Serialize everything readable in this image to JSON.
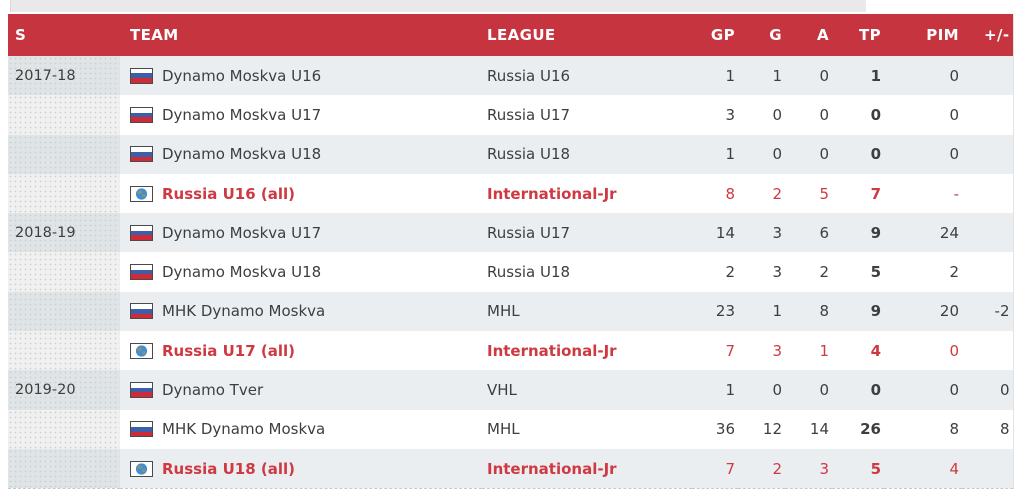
{
  "table": {
    "columns": [
      {
        "key": "season",
        "label": "S"
      },
      {
        "key": "team",
        "label": "TEAM"
      },
      {
        "key": "league",
        "label": "LEAGUE"
      },
      {
        "key": "gp",
        "label": "GP"
      },
      {
        "key": "g",
        "label": "G"
      },
      {
        "key": "a",
        "label": "A"
      },
      {
        "key": "tp",
        "label": "TP"
      },
      {
        "key": "pim",
        "label": "PIM"
      },
      {
        "key": "plusminus",
        "label": "+/-"
      }
    ],
    "rows": [
      {
        "season": "2017-18",
        "icon": "russia-flag",
        "team": "Dynamo Moskva U16",
        "league": "Russia U16",
        "gp": "1",
        "g": "1",
        "a": "0",
        "tp": "1",
        "pim": "0",
        "plusminus": "",
        "international": false
      },
      {
        "season": "",
        "icon": "russia-flag",
        "team": "Dynamo Moskva U17",
        "league": "Russia U17",
        "gp": "3",
        "g": "0",
        "a": "0",
        "tp": "0",
        "pim": "0",
        "plusminus": "",
        "international": false
      },
      {
        "season": "",
        "icon": "russia-flag",
        "team": "Dynamo Moskva U18",
        "league": "Russia U18",
        "gp": "1",
        "g": "0",
        "a": "0",
        "tp": "0",
        "pim": "0",
        "plusminus": "",
        "international": false
      },
      {
        "season": "",
        "icon": "globe",
        "team": "Russia U16 (all)",
        "league": "International-Jr",
        "gp": "8",
        "g": "2",
        "a": "5",
        "tp": "7",
        "pim": "-",
        "plusminus": "",
        "international": true
      },
      {
        "season": "2018-19",
        "icon": "russia-flag",
        "team": "Dynamo Moskva U17",
        "league": "Russia U17",
        "gp": "14",
        "g": "3",
        "a": "6",
        "tp": "9",
        "pim": "24",
        "plusminus": "",
        "international": false
      },
      {
        "season": "",
        "icon": "russia-flag",
        "team": "Dynamo Moskva U18",
        "league": "Russia U18",
        "gp": "2",
        "g": "3",
        "a": "2",
        "tp": "5",
        "pim": "2",
        "plusminus": "",
        "international": false
      },
      {
        "season": "",
        "icon": "russia-flag",
        "team": "MHK Dynamo Moskva",
        "league": "MHL",
        "gp": "23",
        "g": "1",
        "a": "8",
        "tp": "9",
        "pim": "20",
        "plusminus": "-2",
        "international": false
      },
      {
        "season": "",
        "icon": "globe",
        "team": "Russia U17 (all)",
        "league": "International-Jr",
        "gp": "7",
        "g": "3",
        "a": "1",
        "tp": "4",
        "pim": "0",
        "plusminus": "",
        "international": true
      },
      {
        "season": "2019-20",
        "icon": "russia-flag",
        "team": "Dynamo Tver",
        "league": "VHL",
        "gp": "1",
        "g": "0",
        "a": "0",
        "tp": "0",
        "pim": "0",
        "plusminus": "0",
        "international": false
      },
      {
        "season": "",
        "icon": "russia-flag",
        "team": "MHK Dynamo Moskva",
        "league": "MHL",
        "gp": "36",
        "g": "12",
        "a": "14",
        "tp": "26",
        "pim": "8",
        "plusminus": "8",
        "international": false
      },
      {
        "season": "",
        "icon": "globe",
        "team": "Russia U18 (all)",
        "league": "International-Jr",
        "gp": "7",
        "g": "2",
        "a": "3",
        "tp": "5",
        "pim": "4",
        "plusminus": "",
        "international": true
      }
    ]
  },
  "colors": {
    "header_bg": "#c5343f",
    "header_text": "#ffffff",
    "row_text": "#3e3e3e",
    "intl_red": "#cf3942",
    "stripe_bg": "#ebeef1",
    "season_stripe_bg": "#dfe4e7",
    "season_plain_bg": "#f0f0f0",
    "flag_blue": "#3d5faa",
    "flag_red": "#ce2b37",
    "globe_blue": "#3f8fd2"
  }
}
